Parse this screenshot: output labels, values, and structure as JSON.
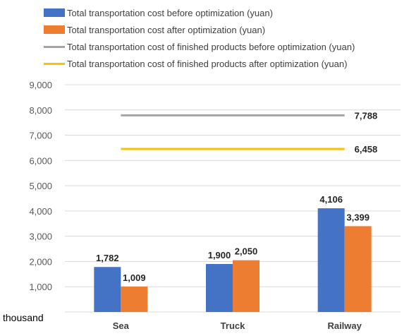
{
  "chart_data": {
    "type": "bar",
    "categories": [
      "Sea",
      "Truck",
      "Railway"
    ],
    "series": [
      {
        "name": "Total transportation cost before optimization (yuan)",
        "values": [
          1782,
          1900,
          4106
        ],
        "color": "#4472C4"
      },
      {
        "name": "Total transportation cost after optimization (yuan)",
        "values": [
          1009,
          2050,
          3399
        ],
        "color": "#ED7D31"
      }
    ],
    "lines": [
      {
        "name": "Total transportation cost of finished products before optimization (yuan)",
        "value": 7788,
        "label": "7,788",
        "color": "#A5A5A5"
      },
      {
        "name": "Total transportation cost of finished products after optimization (yuan)",
        "value": 6458,
        "label": "6,458",
        "color": "#FFC000"
      }
    ],
    "ylim": [
      0,
      9000
    ],
    "yticks": [
      "1,000",
      "2,000",
      "3,000",
      "4,000",
      "5,000",
      "6,000",
      "7,000",
      "8,000",
      "9,000"
    ],
    "unit_label": "thousand",
    "grid": true,
    "legend": "top-left"
  }
}
